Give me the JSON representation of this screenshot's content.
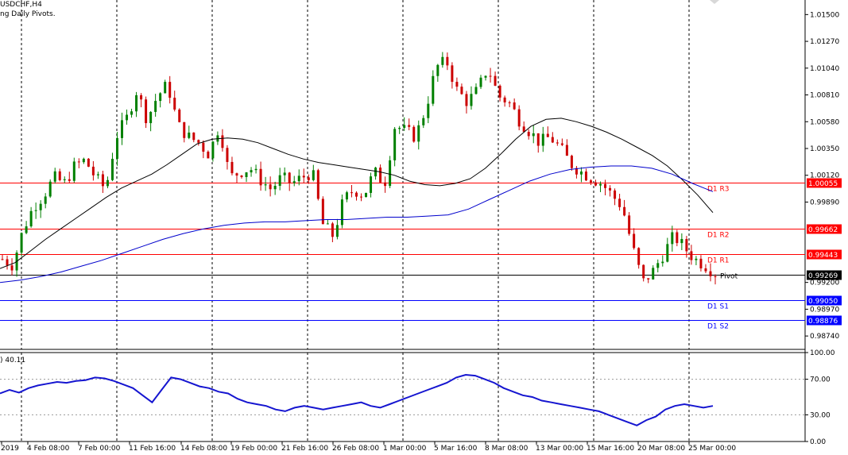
{
  "header": {
    "symbol": "USDCHF,H4",
    "indicator": "ng Daily Pivots."
  },
  "oscillator": {
    "label": ") 40.11",
    "scale": [
      "100.00",
      "70.00",
      "30.00",
      "0.00"
    ],
    "levels": [
      70,
      30
    ],
    "range": [
      0,
      100
    ]
  },
  "colors": {
    "bull": "#008000",
    "bear": "#cc0000",
    "resistance": "#ff0000",
    "support": "#0000ff",
    "ma_fast": "#000000",
    "ma_slow": "#0000cc",
    "osc": "#1515d0",
    "grid": "#000000"
  },
  "chart_data": {
    "type": "candlestick",
    "price_range": [
      0.98625,
      1.01625
    ],
    "y_ticks": [
      "1.01500",
      "1.01270",
      "1.01040",
      "1.00810",
      "1.00580",
      "1.00350",
      "1.00120",
      "0.99890",
      "0.99200",
      "0.98970",
      "0.98740"
    ],
    "x_ticks": [
      "2019",
      "4 Feb 08:00",
      "7 Feb 00:00",
      "11 Feb 16:00",
      "14 Feb 08:00",
      "19 Feb 00:00",
      "21 Feb 16:00",
      "26 Feb 08:00",
      "1 Mar 00:00",
      "5 Mar 16:00",
      "8 Mar 08:00",
      "13 Mar 00:00",
      "15 Mar 16:00",
      "20 Mar 08:00",
      "25 Mar 00:00"
    ],
    "levels": [
      {
        "name": "D1  R3",
        "value": 1.00055,
        "tag": "1.00055",
        "kind": "resistance"
      },
      {
        "name": "D1  R2",
        "value": 0.99662,
        "tag": "0.99662",
        "kind": "resistance"
      },
      {
        "name": "D1  R1",
        "value": 0.99443,
        "tag": "0.99443",
        "kind": "resistance"
      },
      {
        "name": "Pivot",
        "value": 0.99269,
        "tag": "0.99269",
        "kind": "pivot"
      },
      {
        "name": "D1  S1",
        "value": 0.9905,
        "tag": "0.99050",
        "kind": "support"
      },
      {
        "name": "D1  S2",
        "value": 0.98876,
        "tag": "0.98876",
        "kind": "support"
      }
    ],
    "price_path": [
      0.994,
      0.9935,
      0.9965,
      0.9985,
      0.9995,
      1.001,
      1.0005,
      1.002,
      1.0025,
      1.001,
      1.0,
      1.0045,
      1.006,
      1.0085,
      1.006,
      1.008,
      1.009,
      1.0055,
      1.0045,
      1.004,
      1.003,
      1.0055,
      1.001,
      1.0015,
      1.0018,
      1.0008,
      1.0,
      1.001,
      1.0005,
      1.001,
      1.0015,
      0.997,
      0.996,
      0.999,
      1.0,
      0.9995,
      1.0015,
      1.0005,
      1.0055,
      1.005,
      1.0045,
      1.007,
      1.0105,
      1.011,
      1.0085,
      1.0075,
      1.0085,
      1.0105,
      1.008,
      1.0075,
      1.006,
      1.005,
      1.004,
      1.0045,
      1.0035,
      1.0022,
      1.0015,
      1.001,
      1.0005,
      0.9995,
      0.9985,
      0.995,
      0.992,
      0.993,
      0.9945,
      0.996,
      0.995,
      0.994,
      0.9935,
      0.9928
    ],
    "ma_fast": [
      0.9932,
      0.9937,
      0.9947,
      0.9957,
      0.9966,
      0.9975,
      0.9984,
      0.9993,
      1.0001,
      1.0007,
      1.0013,
      1.0021,
      1.003,
      1.0039,
      1.0043,
      1.0044,
      1.0043,
      1.004,
      1.0035,
      1.003,
      1.0026,
      1.0023,
      1.0021,
      1.0019,
      1.0017,
      1.0015,
      1.0012,
      1.0007,
      1.0004,
      1.0003,
      1.0005,
      1.0009,
      1.0018,
      1.003,
      1.0043,
      1.0054,
      1.006,
      1.0061,
      1.0058,
      1.0054,
      1.0049,
      1.0043,
      1.0036,
      1.0029,
      1.002,
      1.0008,
      0.9995,
      0.998
    ],
    "ma_slow": [
      0.992,
      0.9922,
      0.9925,
      0.9929,
      0.9934,
      0.9939,
      0.9945,
      0.9951,
      0.9957,
      0.9962,
      0.9966,
      0.9969,
      0.9971,
      0.9972,
      0.9972,
      0.9973,
      0.9974,
      0.9974,
      0.9975,
      0.9976,
      0.9976,
      0.9977,
      0.9978,
      0.9983,
      0.9991,
      0.9999,
      1.0007,
      1.0013,
      1.0017,
      1.0019,
      1.002,
      1.002,
      1.0018,
      1.0013,
      1.0005,
      0.9998
    ],
    "osc_values": [
      54,
      58,
      55,
      60,
      63,
      65,
      67,
      66,
      68,
      69,
      72,
      71,
      68,
      64,
      60,
      52,
      44,
      58,
      72,
      70,
      66,
      62,
      60,
      56,
      54,
      48,
      44,
      42,
      40,
      36,
      34,
      38,
      40,
      38,
      36,
      38,
      40,
      42,
      44,
      40,
      38,
      42,
      46,
      50,
      54,
      58,
      62,
      66,
      72,
      75,
      74,
      70,
      66,
      60,
      56,
      52,
      50,
      46,
      44,
      42,
      40,
      38,
      36,
      34,
      30,
      26,
      22,
      18,
      24,
      28,
      36,
      40,
      42,
      40,
      38,
      40
    ]
  }
}
